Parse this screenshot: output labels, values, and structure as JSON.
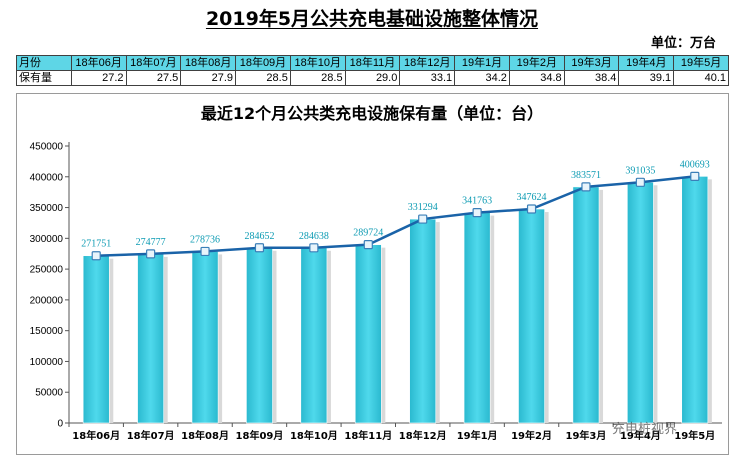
{
  "page": {
    "title": "2019年5月公共充电基础设施整体情况",
    "unit_label": "单位：万台",
    "watermark": "充电桩视界"
  },
  "summary_table": {
    "row_labels": [
      "月份",
      "保有量"
    ],
    "months": [
      "18年06月",
      "18年07月",
      "18年08月",
      "18年09月",
      "18年10月",
      "18年11月",
      "18年12月",
      "19年1月",
      "19年2月",
      "19年3月",
      "19年4月",
      "19年5月"
    ],
    "values": [
      "27.2",
      "27.5",
      "27.9",
      "28.5",
      "28.5",
      "29.0",
      "33.1",
      "34.2",
      "34.8",
      "38.4",
      "39.1",
      "40.1"
    ]
  },
  "chart_data": {
    "type": "bar",
    "title": "最近12个月公共类充电设施保有量（单位：台）",
    "categories": [
      "18年06月",
      "18年07月",
      "18年08月",
      "18年09月",
      "18年10月",
      "18年11月",
      "18年12月",
      "19年1月",
      "19年2月",
      "19年3月",
      "19年4月",
      "19年5月"
    ],
    "series": [
      {
        "values": [
          271751,
          274777,
          278736,
          284652,
          284638,
          289724,
          331294,
          341763,
          347624,
          383571,
          391035,
          400693
        ]
      }
    ],
    "overlay": "line",
    "yticks": [
      0,
      50000,
      100000,
      150000,
      200000,
      250000,
      300000,
      350000,
      400000,
      450000
    ],
    "ylim": [
      0,
      450000
    ],
    "grid": false,
    "legend": "none",
    "colors": {
      "bar": "#3fd0e3",
      "line": "#1a63a8",
      "label": "#0d9bb3"
    }
  }
}
